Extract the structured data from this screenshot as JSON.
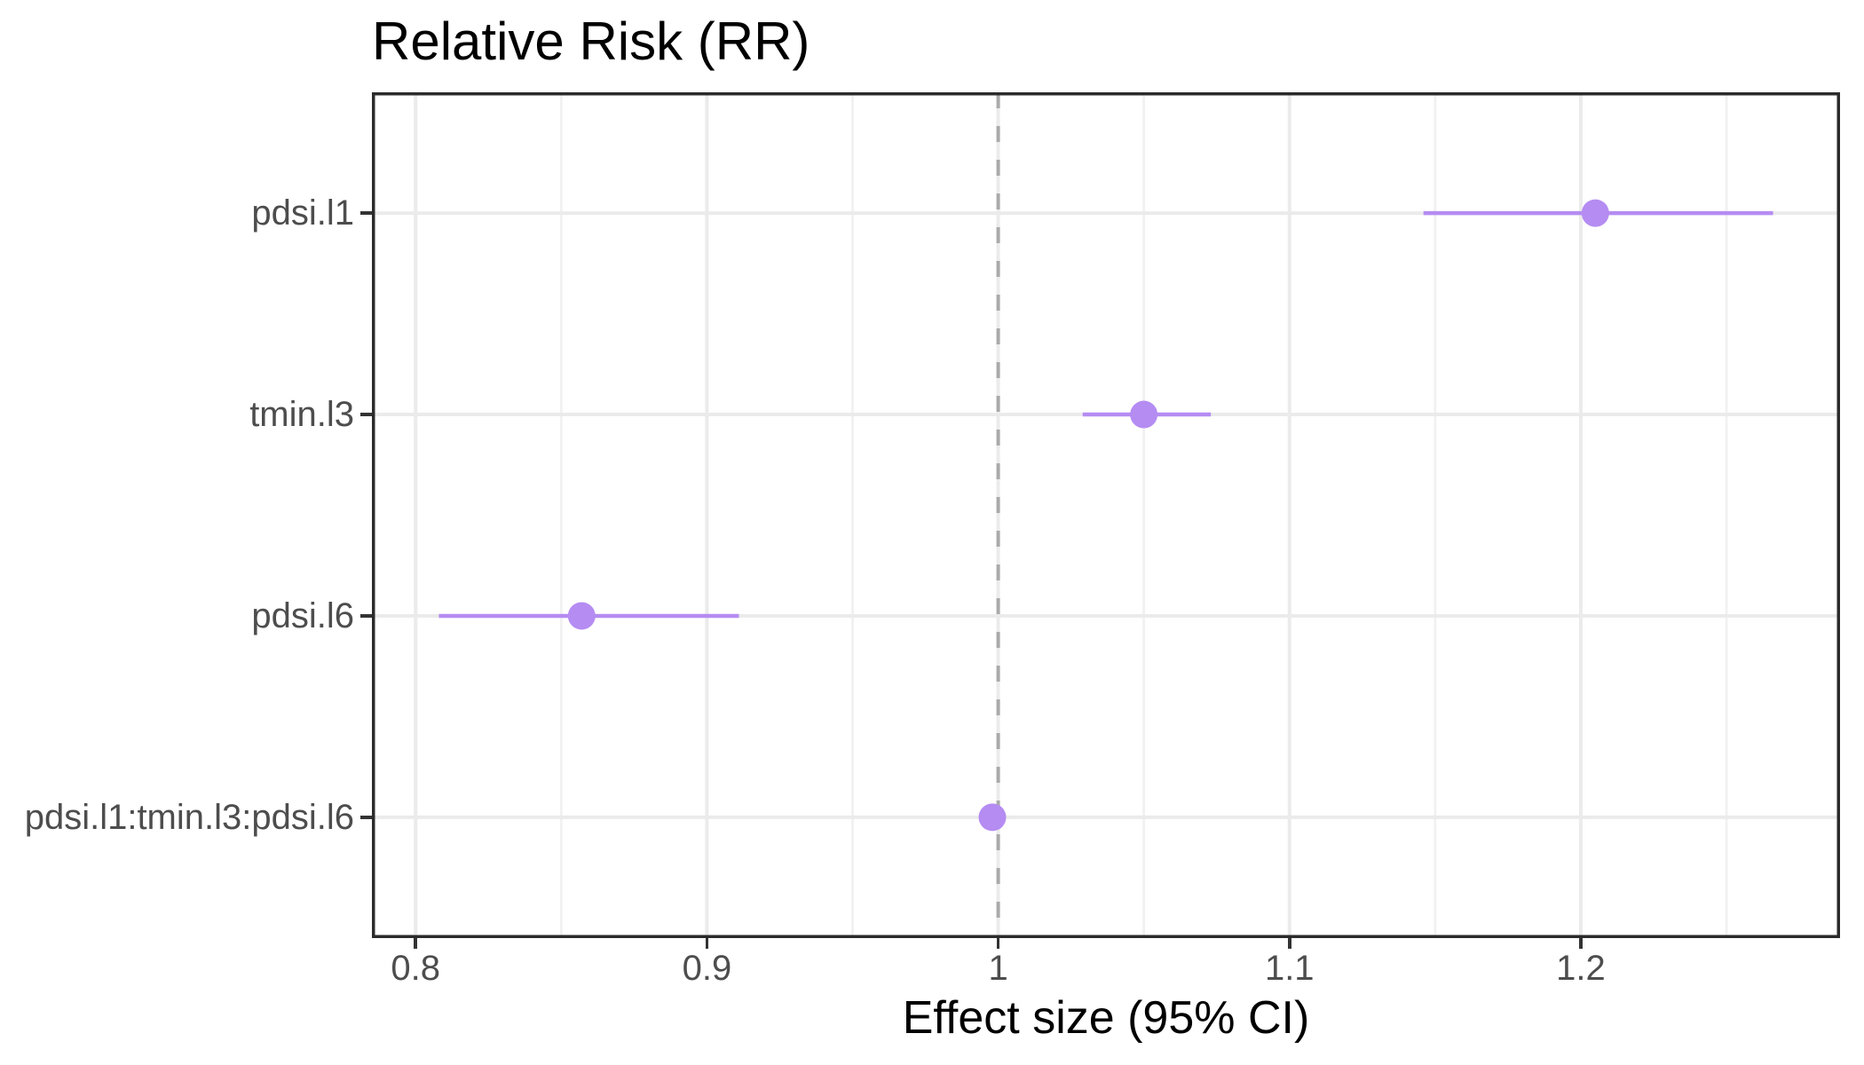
{
  "chart": {
    "title": "Relative Risk (RR)",
    "xlabel": "Effect size (95% CI)"
  },
  "chart_data": {
    "type": "scatter",
    "subtype": "forest-plot-horizontal-ci",
    "title": "Relative Risk (RR)",
    "xlabel": "Effect size (95% CI)",
    "ylabel": "",
    "legend": "none",
    "grid": "vertical major+minor, horizontal major per category",
    "rows": [
      {
        "term": "pdsi.l1",
        "estimate": 1.205,
        "ci_low": 1.146,
        "ci_high": 1.266
      },
      {
        "term": "tmin.l3",
        "estimate": 1.05,
        "ci_low": 1.029,
        "ci_high": 1.073
      },
      {
        "term": "pdsi.l6",
        "estimate": 0.857,
        "ci_low": 0.808,
        "ci_high": 0.911
      },
      {
        "term": "pdsi.l1:tmin.l3:pdsi.l6",
        "estimate": 0.998,
        "ci_low": 0.994,
        "ci_high": 1.002
      }
    ],
    "xlim": [
      0.785,
      1.289
    ],
    "x_major_ticks": [
      0.8,
      0.9,
      1.0,
      1.1,
      1.2
    ],
    "x_tick_labels": [
      "0.8",
      "0.9",
      "1",
      "1.1",
      "1.2"
    ],
    "x_minor_ticks": [
      0.85,
      0.95,
      1.05,
      1.15,
      1.25
    ],
    "reference_line": {
      "x": 1.0,
      "style": "dashed",
      "color": "#aaaaaa"
    },
    "colors": {
      "point": "#b58cf2",
      "ci_line": "#b58cf2",
      "grid_major": "#ebebeb",
      "grid_minor": "#f1f1f1",
      "panel_border": "#2b2b2b",
      "tick_mark": "#333333",
      "axis_text": "#4d4d4d",
      "title_text": "#000000"
    }
  }
}
